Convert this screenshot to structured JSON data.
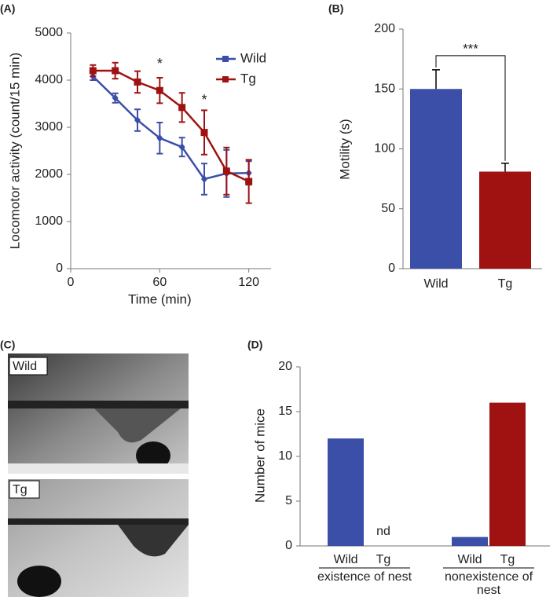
{
  "chart_data": [
    {
      "type": "line",
      "label": "(A)",
      "x_label": "Time (min)",
      "y_label": "Locomotor activity (count/15 min)",
      "x": [
        15,
        30,
        45,
        60,
        75,
        90,
        105,
        120
      ],
      "series": [
        {
          "name": "Wild",
          "color": "#3b4fa8",
          "values": [
            4080,
            3620,
            3150,
            2770,
            2580,
            1900,
            2020,
            2030
          ],
          "errors": [
            80,
            100,
            230,
            330,
            200,
            330,
            500,
            250
          ]
        },
        {
          "name": "Tg",
          "color": "#a01212",
          "values": [
            4200,
            4200,
            3960,
            3780,
            3420,
            2890,
            2070,
            1850
          ],
          "errors": [
            120,
            170,
            230,
            270,
            310,
            470,
            500,
            460
          ]
        }
      ],
      "xlim": [
        0,
        135
      ],
      "xticks": [
        0,
        60,
        120
      ],
      "ylim": [
        0,
        5000
      ],
      "yticks": [
        0,
        1000,
        2000,
        3000,
        4000,
        5000
      ],
      "annotations": [
        {
          "text": "*",
          "x": 60,
          "y": 4330
        },
        {
          "text": "*",
          "x": 90,
          "y": 3560
        }
      ],
      "legend": "upper right"
    },
    {
      "type": "bar",
      "label": "(B)",
      "y_label": "Motility (s)",
      "categories": [
        "Wild",
        "Tg"
      ],
      "values": [
        150,
        81
      ],
      "errors": [
        16,
        7
      ],
      "colors": [
        "#3b4fa8",
        "#a01212"
      ],
      "ylim": [
        0,
        200
      ],
      "yticks": [
        0,
        50,
        100,
        150,
        200
      ],
      "annotation": "***"
    },
    {
      "type": "grouped-bar",
      "label": "(D)",
      "y_label": "Number of mice",
      "categories": [
        "existence of nest",
        "nonexistence of nest"
      ],
      "series": [
        {
          "name": "Wild",
          "color": "#3b4fa8",
          "values": [
            12,
            1
          ]
        },
        {
          "name": "Tg",
          "color": "#a01212",
          "values": [
            null,
            16
          ],
          "value_labels": [
            "nd",
            null
          ]
        }
      ],
      "ylim": [
        0,
        20
      ],
      "yticks": [
        0,
        5,
        10,
        15,
        20
      ]
    }
  ],
  "images": {
    "label": "(C)",
    "panels": [
      "Wild",
      "Tg"
    ]
  }
}
